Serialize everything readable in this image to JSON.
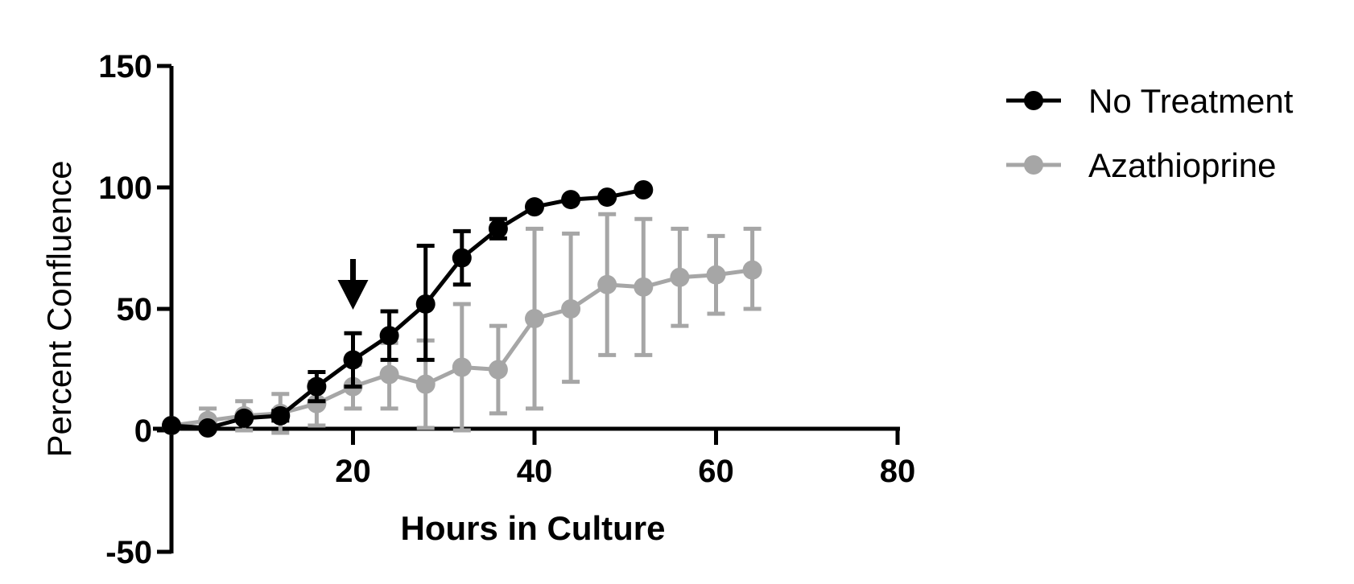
{
  "chart_data": {
    "type": "line",
    "title": "",
    "xlabel": "Hours in Culture",
    "ylabel": "Percent Confluence",
    "xlim": [
      0,
      80
    ],
    "ylim": [
      -50,
      150
    ],
    "xticks": [
      20,
      40,
      60,
      80
    ],
    "xtick_labels": [
      "20",
      "40",
      "60",
      "80"
    ],
    "yticks": [
      150,
      100,
      50,
      0,
      -50
    ],
    "ytick_labels": [
      "150",
      "100",
      "50",
      "0",
      "-50"
    ],
    "grid": false,
    "legend_position": "top-right",
    "annotations": [
      {
        "type": "arrow",
        "x": 20,
        "pointing": "down"
      }
    ],
    "series": [
      {
        "name": "No Treatment",
        "color": "#000000",
        "x": [
          0,
          4,
          8,
          12,
          16,
          20,
          24,
          28,
          32,
          36,
          40,
          44,
          48,
          52
        ],
        "y": [
          2,
          1,
          5,
          6,
          18,
          29,
          39,
          52,
          71,
          83,
          92,
          95,
          96,
          99
        ],
        "err_upper": [
          0,
          0,
          0,
          2,
          6,
          11,
          10,
          24,
          11,
          4,
          0,
          0,
          0,
          0
        ],
        "err_lower": [
          0,
          0,
          0,
          2,
          6,
          11,
          10,
          23,
          11,
          4,
          0,
          0,
          0,
          0
        ]
      },
      {
        "name": "Azathioprine",
        "color": "#A6A6A6",
        "x": [
          0,
          4,
          8,
          12,
          16,
          20,
          24,
          28,
          32,
          36,
          40,
          44,
          48,
          52,
          56,
          60,
          64
        ],
        "y": [
          2,
          4,
          6,
          7,
          11,
          18,
          23,
          19,
          26,
          25,
          46,
          50,
          60,
          59,
          63,
          64,
          66
        ],
        "err_upper": [
          0,
          5,
          6,
          8,
          9,
          9,
          13,
          18,
          26,
          18,
          37,
          31,
          29,
          28,
          20,
          16,
          17
        ],
        "err_lower": [
          0,
          4,
          6,
          8,
          9,
          9,
          14,
          18,
          26,
          18,
          37,
          30,
          29,
          28,
          20,
          16,
          16
        ]
      }
    ]
  }
}
